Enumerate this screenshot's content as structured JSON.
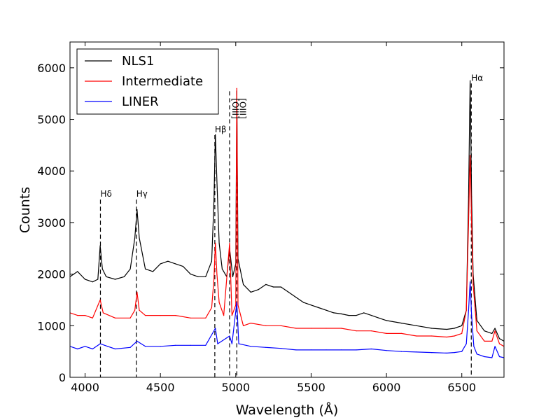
{
  "chart_data": {
    "type": "line",
    "title": "",
    "xlabel": "Wavelength (Å)",
    "ylabel": "Counts",
    "xlim": [
      3900,
      6780
    ],
    "ylim": [
      0,
      6500
    ],
    "xticks": [
      4000,
      4500,
      5000,
      5500,
      6000,
      6500
    ],
    "yticks": [
      0,
      1000,
      2000,
      3000,
      4000,
      5000,
      6000
    ],
    "grid": false,
    "legend_position": "top-left",
    "series": [
      {
        "name": "NLS1",
        "color": "#000000",
        "values": [
          [
            3900,
            1950
          ],
          [
            3950,
            2050
          ],
          [
            4000,
            1900
          ],
          [
            4050,
            1850
          ],
          [
            4085,
            1900
          ],
          [
            4100,
            2550
          ],
          [
            4115,
            2100
          ],
          [
            4140,
            1950
          ],
          [
            4200,
            1900
          ],
          [
            4260,
            1950
          ],
          [
            4300,
            2100
          ],
          [
            4330,
            2700
          ],
          [
            4345,
            3250
          ],
          [
            4360,
            2700
          ],
          [
            4400,
            2100
          ],
          [
            4450,
            2050
          ],
          [
            4500,
            2200
          ],
          [
            4550,
            2250
          ],
          [
            4600,
            2200
          ],
          [
            4650,
            2150
          ],
          [
            4700,
            2000
          ],
          [
            4750,
            1950
          ],
          [
            4800,
            1950
          ],
          [
            4840,
            2250
          ],
          [
            4855,
            3400
          ],
          [
            4865,
            4700
          ],
          [
            4875,
            3800
          ],
          [
            4890,
            2600
          ],
          [
            4910,
            2100
          ],
          [
            4940,
            1950
          ],
          [
            4959,
            2500
          ],
          [
            4980,
            1950
          ],
          [
            5000,
            2200
          ],
          [
            5007,
            5550
          ],
          [
            5015,
            2300
          ],
          [
            5050,
            1800
          ],
          [
            5100,
            1650
          ],
          [
            5150,
            1700
          ],
          [
            5200,
            1800
          ],
          [
            5250,
            1750
          ],
          [
            5300,
            1750
          ],
          [
            5350,
            1650
          ],
          [
            5400,
            1550
          ],
          [
            5450,
            1450
          ],
          [
            5500,
            1400
          ],
          [
            5550,
            1350
          ],
          [
            5600,
            1300
          ],
          [
            5650,
            1250
          ],
          [
            5700,
            1230
          ],
          [
            5750,
            1200
          ],
          [
            5800,
            1200
          ],
          [
            5850,
            1250
          ],
          [
            5900,
            1200
          ],
          [
            5950,
            1150
          ],
          [
            6000,
            1100
          ],
          [
            6100,
            1050
          ],
          [
            6200,
            1000
          ],
          [
            6300,
            950
          ],
          [
            6400,
            930
          ],
          [
            6450,
            950
          ],
          [
            6500,
            1000
          ],
          [
            6530,
            1300
          ],
          [
            6545,
            3500
          ],
          [
            6555,
            5750
          ],
          [
            6565,
            3500
          ],
          [
            6575,
            2000
          ],
          [
            6600,
            1100
          ],
          [
            6650,
            900
          ],
          [
            6700,
            850
          ],
          [
            6720,
            950
          ],
          [
            6750,
            750
          ],
          [
            6780,
            700
          ]
        ]
      },
      {
        "name": "Intermediate",
        "color": "#ff0000",
        "values": [
          [
            3900,
            1250
          ],
          [
            3950,
            1200
          ],
          [
            4000,
            1200
          ],
          [
            4050,
            1150
          ],
          [
            4100,
            1500
          ],
          [
            4120,
            1250
          ],
          [
            4200,
            1150
          ],
          [
            4300,
            1150
          ],
          [
            4330,
            1300
          ],
          [
            4345,
            1650
          ],
          [
            4360,
            1300
          ],
          [
            4400,
            1200
          ],
          [
            4500,
            1200
          ],
          [
            4600,
            1200
          ],
          [
            4700,
            1150
          ],
          [
            4800,
            1150
          ],
          [
            4840,
            1350
          ],
          [
            4855,
            1900
          ],
          [
            4865,
            2600
          ],
          [
            4875,
            2000
          ],
          [
            4890,
            1450
          ],
          [
            4920,
            1200
          ],
          [
            4959,
            2600
          ],
          [
            4975,
            1200
          ],
          [
            5000,
            1400
          ],
          [
            5007,
            5600
          ],
          [
            5015,
            1400
          ],
          [
            5050,
            1000
          ],
          [
            5100,
            1050
          ],
          [
            5200,
            1000
          ],
          [
            5300,
            1000
          ],
          [
            5400,
            950
          ],
          [
            5500,
            950
          ],
          [
            5600,
            950
          ],
          [
            5700,
            950
          ],
          [
            5800,
            900
          ],
          [
            5900,
            900
          ],
          [
            6000,
            850
          ],
          [
            6100,
            850
          ],
          [
            6200,
            800
          ],
          [
            6300,
            800
          ],
          [
            6400,
            780
          ],
          [
            6450,
            800
          ],
          [
            6500,
            850
          ],
          [
            6530,
            1300
          ],
          [
            6545,
            3000
          ],
          [
            6555,
            4300
          ],
          [
            6565,
            3000
          ],
          [
            6575,
            1800
          ],
          [
            6600,
            900
          ],
          [
            6650,
            700
          ],
          [
            6700,
            700
          ],
          [
            6720,
            900
          ],
          [
            6750,
            650
          ],
          [
            6780,
            600
          ]
        ]
      },
      {
        "name": "LINER",
        "color": "#0000ff",
        "values": [
          [
            3900,
            600
          ],
          [
            3950,
            550
          ],
          [
            4000,
            600
          ],
          [
            4050,
            550
          ],
          [
            4100,
            650
          ],
          [
            4150,
            600
          ],
          [
            4200,
            550
          ],
          [
            4300,
            580
          ],
          [
            4345,
            700
          ],
          [
            4400,
            600
          ],
          [
            4500,
            600
          ],
          [
            4600,
            620
          ],
          [
            4700,
            620
          ],
          [
            4800,
            620
          ],
          [
            4865,
            950
          ],
          [
            4880,
            650
          ],
          [
            4959,
            800
          ],
          [
            4975,
            650
          ],
          [
            5007,
            1450
          ],
          [
            5020,
            650
          ],
          [
            5100,
            600
          ],
          [
            5200,
            580
          ],
          [
            5300,
            560
          ],
          [
            5400,
            530
          ],
          [
            5500,
            530
          ],
          [
            5600,
            530
          ],
          [
            5700,
            530
          ],
          [
            5800,
            530
          ],
          [
            5900,
            550
          ],
          [
            6000,
            520
          ],
          [
            6100,
            500
          ],
          [
            6200,
            490
          ],
          [
            6300,
            480
          ],
          [
            6400,
            470
          ],
          [
            6450,
            480
          ],
          [
            6500,
            500
          ],
          [
            6530,
            650
          ],
          [
            6545,
            1300
          ],
          [
            6555,
            1850
          ],
          [
            6565,
            1200
          ],
          [
            6580,
            600
          ],
          [
            6600,
            450
          ],
          [
            6650,
            400
          ],
          [
            6700,
            380
          ],
          [
            6720,
            600
          ],
          [
            6750,
            400
          ],
          [
            6780,
            380
          ]
        ]
      }
    ],
    "line_markers": [
      {
        "x": 4102,
        "label": "Hδ",
        "label_y": 3500
      },
      {
        "x": 4340,
        "label": "Hγ",
        "label_y": 3500
      },
      {
        "x": 4861,
        "label": "Hβ",
        "label_y": 4750
      },
      {
        "x": 4959,
        "label": "[OIII]",
        "label_y": 5600,
        "rotated": true
      },
      {
        "x": 5007,
        "label": "[OIII]",
        "label_y": 5600,
        "rotated": true
      },
      {
        "x": 6563,
        "label": "Hα",
        "label_y": 5750
      }
    ]
  }
}
